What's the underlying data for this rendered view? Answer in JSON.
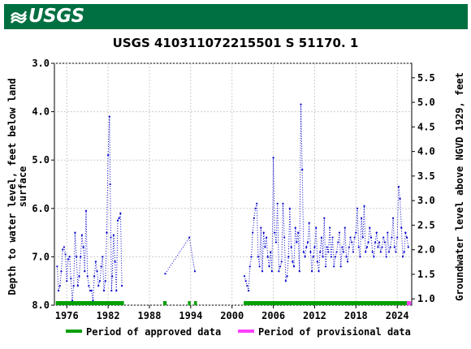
{
  "header": {
    "agency": "USGS"
  },
  "chart_data": {
    "type": "scatter",
    "title": "USGS 410311072215501 S 51170. 1",
    "ylabel_left": "Depth to water level, feet below land surface",
    "ylabel_right": "Groundwater level above NGVD 1929, feet",
    "x_ticks": [
      "1976",
      "1982",
      "1988",
      "1994",
      "2000",
      "2006",
      "2012",
      "2018",
      "2024"
    ],
    "x_tick_values": [
      1976,
      1982,
      1988,
      1994,
      2000,
      2006,
      2012,
      2018,
      2024
    ],
    "y_ticks_left": [
      "3.0",
      "4.0",
      "5.0",
      "6.0",
      "7.0",
      "8.0"
    ],
    "y_tick_values_left": [
      3.0,
      4.0,
      5.0,
      6.0,
      7.0,
      8.0
    ],
    "y_ticks_right": [
      "5.5",
      "5.0",
      "4.5",
      "4.0",
      "3.5",
      "3.0",
      "2.5",
      "2.0",
      "1.5",
      "1.0"
    ],
    "y_tick_values_right": [
      5.5,
      5.0,
      4.5,
      4.0,
      3.5,
      3.0,
      2.5,
      2.0,
      1.5,
      1.0
    ],
    "xlim": [
      1974.2,
      2026.1
    ],
    "ylim_left": [
      3.0,
      8.0
    ],
    "y_inverted": true,
    "series_color": "#0000cc",
    "series": [
      {
        "x": [
          1974.6,
          1974.8,
          1975.0,
          1975.2,
          1975.4,
          1975.6,
          1975.8,
          1976.0,
          1976.2,
          1976.4,
          1976.6,
          1976.8,
          1977.0,
          1977.2,
          1977.4,
          1977.6,
          1977.8,
          1978.0,
          1978.2,
          1978.4,
          1978.6,
          1978.8,
          1979.0,
          1979.2,
          1979.4,
          1979.6,
          1979.8,
          1980.0,
          1980.2,
          1980.4,
          1980.6,
          1980.8,
          1981.0,
          1981.2,
          1981.4,
          1981.6,
          1981.8,
          1982.0,
          1982.2,
          1982.3,
          1982.4,
          1982.5,
          1982.6,
          1982.8,
          1983.0,
          1983.2,
          1983.4,
          1983.6,
          1983.8,
          1984.0
        ],
        "y": [
          7.2,
          7.7,
          7.6,
          7.3,
          6.85,
          6.8,
          6.95,
          7.5,
          7.05,
          7.0,
          7.45,
          7.9,
          7.6,
          6.5,
          7.0,
          7.6,
          7.4,
          7.0,
          6.55,
          6.8,
          7.3,
          6.05,
          7.4,
          7.6,
          7.7,
          7.7,
          7.9,
          7.4,
          7.1,
          7.3,
          7.6,
          7.5,
          7.2,
          7.0,
          7.7,
          7.5,
          6.5,
          4.9,
          4.1,
          5.5,
          6.6,
          7.7,
          7.4,
          6.55,
          7.1,
          7.7,
          6.25,
          6.2,
          6.1,
          7.6
        ]
      },
      {
        "x": [
          1990.3,
          1993.8,
          1994.6
        ],
        "y": [
          7.35,
          6.6,
          7.3
        ]
      },
      {
        "x": [
          2001.8,
          2002.0,
          2002.2,
          2002.4,
          2002.6,
          2002.8,
          2003.0,
          2003.2,
          2003.4,
          2003.6,
          2003.8,
          2004.0,
          2004.2,
          2004.4,
          2004.6,
          2004.8,
          2005.0,
          2005.2,
          2005.4,
          2005.6,
          2005.8,
          2006.0,
          2006.2,
          2006.4,
          2006.6,
          2006.8,
          2007.0,
          2007.2,
          2007.4,
          2007.6,
          2007.8,
          2008.0,
          2008.2,
          2008.4,
          2008.6,
          2008.8,
          2009.0,
          2009.2,
          2009.4,
          2009.6,
          2009.8,
          2010.0,
          2010.2,
          2010.4,
          2010.6,
          2010.8,
          2011.0,
          2011.2,
          2011.4,
          2011.6,
          2011.8,
          2012.0,
          2012.2,
          2012.4,
          2012.6,
          2012.8,
          2013.0,
          2013.2,
          2013.4,
          2013.6,
          2013.8,
          2014.0,
          2014.2,
          2014.4,
          2014.6,
          2014.8,
          2015.0,
          2015.2,
          2015.4,
          2015.6,
          2015.8,
          2016.0,
          2016.2,
          2016.4,
          2016.6,
          2016.8,
          2017.0,
          2017.2,
          2017.4,
          2017.6,
          2017.8,
          2018.0,
          2018.2,
          2018.4,
          2018.6,
          2018.8,
          2019.0,
          2019.2,
          2019.4,
          2019.6,
          2019.8,
          2020.0,
          2020.2,
          2020.4,
          2020.6,
          2020.8,
          2021.0,
          2021.2,
          2021.4,
          2021.6,
          2021.8,
          2022.0,
          2022.2,
          2022.4,
          2022.6,
          2022.8,
          2023.0,
          2023.2,
          2023.4,
          2023.6,
          2023.8,
          2024.0,
          2024.2,
          2024.4,
          2024.6,
          2024.8,
          2025.0,
          2025.2,
          2025.4,
          2025.6
        ],
        "y": [
          7.4,
          7.5,
          7.6,
          7.7,
          7.2,
          7.0,
          6.5,
          6.2,
          6.0,
          5.9,
          7.0,
          7.2,
          6.4,
          7.3,
          6.5,
          6.8,
          6.6,
          7.0,
          7.2,
          6.9,
          7.3,
          4.95,
          6.5,
          6.7,
          5.9,
          7.3,
          7.2,
          7.1,
          5.9,
          6.6,
          7.5,
          7.4,
          7.0,
          6.0,
          6.8,
          7.1,
          7.2,
          6.4,
          6.7,
          6.5,
          7.3,
          3.85,
          5.2,
          6.9,
          7.0,
          6.8,
          6.7,
          6.3,
          6.9,
          7.3,
          7.0,
          6.8,
          6.4,
          7.1,
          7.3,
          6.9,
          6.6,
          7.0,
          6.2,
          7.2,
          6.8,
          6.9,
          6.4,
          7.0,
          6.6,
          7.2,
          7.0,
          6.9,
          6.7,
          6.5,
          7.2,
          6.8,
          6.9,
          6.4,
          7.0,
          7.1,
          6.8,
          6.6,
          6.7,
          6.9,
          6.6,
          6.5,
          6.0,
          6.8,
          7.0,
          6.2,
          6.6,
          5.95,
          6.9,
          6.8,
          6.7,
          6.4,
          6.6,
          6.9,
          7.0,
          6.7,
          6.5,
          6.8,
          6.7,
          6.9,
          6.8,
          6.6,
          6.7,
          7.0,
          6.5,
          6.9,
          6.8,
          6.6,
          6.2,
          6.8,
          6.9,
          6.6,
          5.55,
          5.8,
          6.4,
          7.0,
          6.9,
          6.5,
          6.6,
          6.8
        ]
      }
    ],
    "approved_periods": [
      [
        1974.4,
        1984.3
      ],
      [
        1990.0,
        1990.5
      ],
      [
        1993.6,
        1994.0
      ],
      [
        1994.5,
        1994.9
      ],
      [
        2001.7,
        2025.4
      ]
    ],
    "provisional_periods": [
      [
        2025.4,
        2026.0
      ]
    ],
    "approved_color": "#00a000",
    "provisional_color": "#ff40ff",
    "legend": [
      {
        "label": "Period of approved data",
        "color": "#00a000"
      },
      {
        "label": "Period of provisional data",
        "color": "#ff40ff"
      }
    ]
  }
}
